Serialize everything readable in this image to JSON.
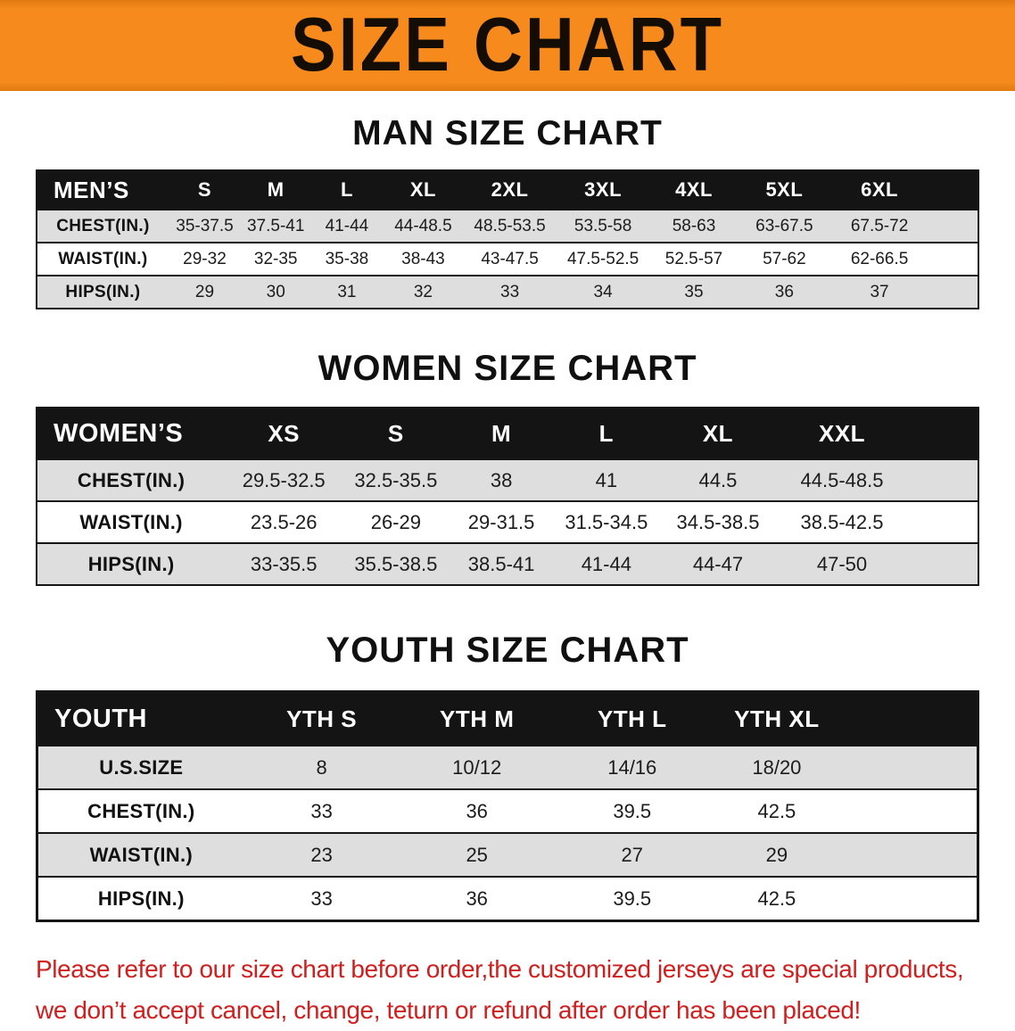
{
  "banner": {
    "title": "SIZE CHART"
  },
  "colors": {
    "banner_bg": "#f68a1d",
    "banner_edge": "#e07a10",
    "title_text": "#140d06",
    "header_bg": "#141414",
    "header_text": "#ffffff",
    "row_alt_bg": "#dedede",
    "border": "#161616",
    "disclaimer_red": "#d11e1e"
  },
  "men": {
    "heading": "MAN SIZE CHART",
    "table": {
      "header": [
        "MEN’S",
        "S",
        "M",
        "L",
        "XL",
        "2XL",
        "3XL",
        "4XL",
        "5XL",
        "6XL"
      ],
      "rows": [
        [
          "CHEST(IN.)",
          "35-37.5",
          "37.5-41",
          "41-44",
          "44-48.5",
          "48.5-53.5",
          "53.5-58",
          "58-63",
          "63-67.5",
          "67.5-72"
        ],
        [
          "WAIST(IN.)",
          "29-32",
          "32-35",
          "35-38",
          "38-43",
          "43-47.5",
          "47.5-52.5",
          "52.5-57",
          "57-62",
          "62-66.5"
        ],
        [
          "HIPS(IN.)",
          "29",
          "30",
          "31",
          "32",
          "33",
          "34",
          "35",
          "36",
          "37"
        ]
      ]
    }
  },
  "women": {
    "heading": "WOMEN SIZE CHART",
    "table": {
      "header": [
        "WOMEN’S",
        "XS",
        "S",
        "M",
        "L",
        "XL",
        "XXL"
      ],
      "rows": [
        [
          "CHEST(IN.)",
          "29.5-32.5",
          "32.5-35.5",
          "38",
          "41",
          "44.5",
          "44.5-48.5"
        ],
        [
          "WAIST(IN.)",
          "23.5-26",
          "26-29",
          "29-31.5",
          "31.5-34.5",
          "34.5-38.5",
          "38.5-42.5"
        ],
        [
          "HIPS(IN.)",
          "33-35.5",
          "35.5-38.5",
          "38.5-41",
          "41-44",
          "44-47",
          "47-50"
        ]
      ]
    }
  },
  "youth": {
    "heading": "YOUTH SIZE CHART",
    "table": {
      "header": [
        "YOUTH",
        "YTH S",
        "YTH M",
        "YTH L",
        "YTH XL"
      ],
      "rows": [
        [
          "U.S.SIZE",
          "8",
          "10/12",
          "14/16",
          "18/20"
        ],
        [
          "CHEST(IN.)",
          "33",
          "36",
          "39.5",
          "42.5"
        ],
        [
          "WAIST(IN.)",
          "23",
          "25",
          "27",
          "29"
        ],
        [
          "HIPS(IN.)",
          "33",
          "36",
          "39.5",
          "42.5"
        ]
      ]
    }
  },
  "disclaimer": {
    "line1": "Please refer to our size chart before order,the customized jerseys are special products,",
    "line2": "we don’t accept cancel, change, teturn or refund after order has been placed!"
  }
}
